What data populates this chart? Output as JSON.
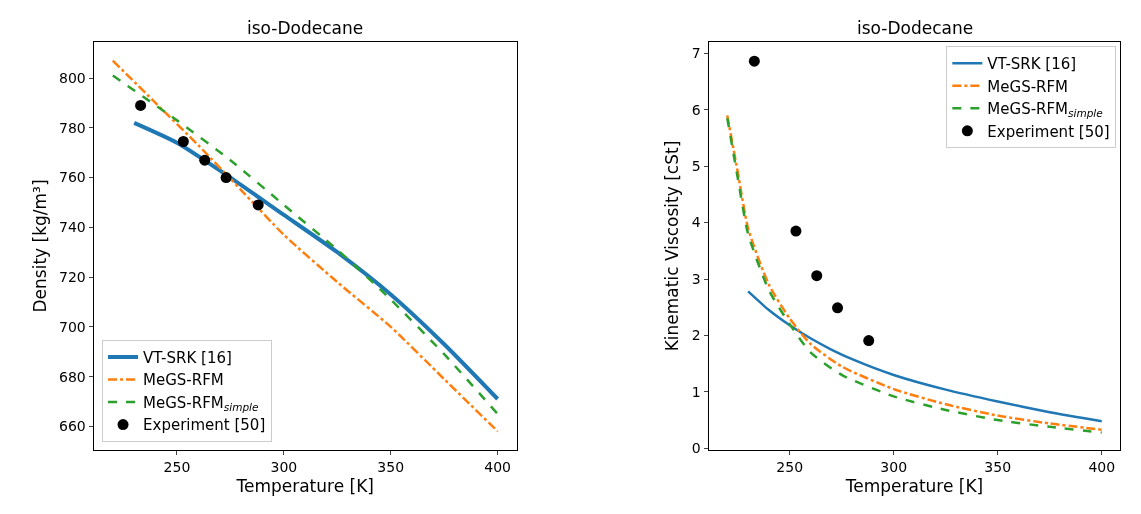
{
  "chart_data": [
    {
      "type": "line",
      "title": "iso-Dodecane",
      "xlabel": "Temperature [K]",
      "ylabel": "Density [kg/m³]",
      "xlim": [
        211,
        409
      ],
      "xticks": [
        250,
        300,
        350,
        400
      ],
      "ylim": [
        650.5,
        814.5
      ],
      "yticks": [
        660,
        680,
        700,
        720,
        740,
        760,
        780,
        800
      ],
      "legend": "bottom left",
      "series": [
        {
          "name": "VT-SRK [16]",
          "color": "#1f77b4",
          "line_style": "solid",
          "x": [
            230,
            250,
            275,
            300,
            325,
            350,
            375,
            400
          ],
          "values": [
            782,
            774,
            760,
            745,
            730,
            713,
            693,
            671
          ]
        },
        {
          "name": "MeGS-RFM",
          "color": "#ff7f0e",
          "line_style": "dashdot",
          "x": [
            220,
            240,
            260,
            280,
            300,
            325,
            350,
            375,
            400
          ],
          "values": [
            807,
            790,
            773,
            755,
            737,
            718,
            700,
            679,
            658
          ]
        },
        {
          "name": "MeGS-RFM$_{simple}$",
          "color": "#2ca02c",
          "line_style": "dashed",
          "x": [
            220,
            250,
            275,
            300,
            325,
            350,
            375,
            400
          ],
          "values": [
            801,
            783,
            767,
            749,
            731,
            711,
            689,
            665
          ]
        },
        {
          "name": "Experiment [50]",
          "type": "scatter",
          "marker": "circle",
          "color": "#000000",
          "x": [
            233,
            253,
            263,
            273,
            288
          ],
          "values": [
            789,
            774.5,
            767,
            760,
            749
          ]
        }
      ]
    },
    {
      "type": "line",
      "title": "iso-Dodecane",
      "xlabel": "Temperature [K]",
      "ylabel": "Kinematic Viscosity [cSt]",
      "xlim": [
        211,
        409
      ],
      "xticks": [
        250,
        300,
        350,
        400
      ],
      "ylim": [
        -0.03,
        7.2
      ],
      "yticks": [
        0,
        1,
        2,
        3,
        4,
        5,
        6,
        7
      ],
      "legend": "top right",
      "series": [
        {
          "name": "VT-SRK [16]",
          "color": "#1f77b4",
          "line_style": "solid",
          "x": [
            230,
            240,
            250,
            260,
            270,
            280,
            300,
            325,
            350,
            375,
            400
          ],
          "values": [
            2.78,
            2.45,
            2.18,
            1.95,
            1.75,
            1.58,
            1.3,
            1.04,
            0.83,
            0.64,
            0.48
          ]
        },
        {
          "name": "MeGS-RFM",
          "color": "#ff7f0e",
          "line_style": "dashdot",
          "x": [
            220,
            225,
            230,
            240,
            250,
            260,
            275,
            300,
            325,
            350,
            375,
            400
          ],
          "values": [
            5.9,
            4.9,
            3.9,
            2.9,
            2.3,
            1.85,
            1.45,
            1.05,
            0.78,
            0.58,
            0.44,
            0.33
          ]
        },
        {
          "name": "MeGS-RFM$_{simple}$",
          "color": "#2ca02c",
          "line_style": "dashed",
          "x": [
            220,
            225,
            230,
            240,
            250,
            260,
            275,
            300,
            325,
            350,
            375,
            400
          ],
          "values": [
            5.85,
            4.8,
            3.8,
            2.8,
            2.2,
            1.7,
            1.3,
            0.92,
            0.68,
            0.5,
            0.38,
            0.28
          ]
        },
        {
          "name": "Experiment [50]",
          "type": "scatter",
          "marker": "circle",
          "color": "#000000",
          "x": [
            233,
            253,
            263,
            273,
            288
          ],
          "values": [
            6.86,
            3.85,
            3.06,
            2.49,
            1.91
          ]
        }
      ]
    }
  ]
}
